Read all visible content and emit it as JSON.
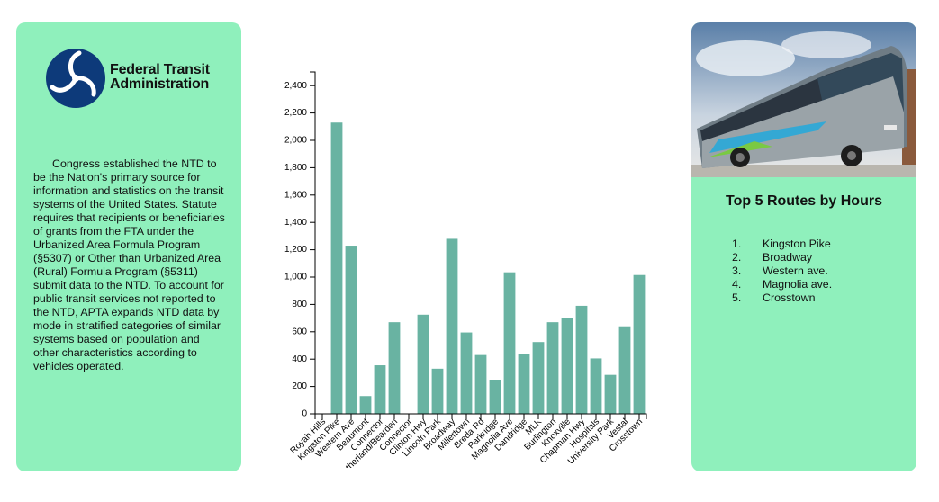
{
  "fta": {
    "logo_line1": "Federal Transit",
    "logo_line2": "Administration",
    "description": "Congress established the NTD to be the Nation's primary source for information and statistics on the transit systems of the United States. Statute requires that recipients or beneficiaries of grants from the FTA under the Urbanized Area Formula Program (§5307) or Other than Urbanized Area (Rural) Formula Program (§5311) submit data to the NTD. To account for public transit services not reported to the NTD, APTA expands NTD data by mode in stratified categories of similar systems based on population and other characteristics according to vehicles operated."
  },
  "routes": {
    "title": "Top 5 Routes by Hours",
    "items": [
      {
        "num": "1.",
        "name": "Kingston Pike"
      },
      {
        "num": "2.",
        "name": "Broadway"
      },
      {
        "num": "3.",
        "name": "Western ave."
      },
      {
        "num": "4.",
        "name": "Magnolia ave."
      },
      {
        "num": "5.",
        "name": "Crosstown"
      }
    ]
  },
  "colors": {
    "panel": "#8ff0bc",
    "bar": "#69b3a2"
  },
  "chart_data": {
    "type": "bar",
    "categories": [
      "Royah Hills",
      "Kingston Pike",
      "Western Ave",
      "Beaumont",
      "Connector",
      "Sutherland/Bearden",
      "Connector",
      "Clinton Hwy",
      "Lincoln Park",
      "Broadway",
      "Millertown",
      "Breda Rd",
      "Parkridge",
      "Magnolia Ave",
      "Dandridge",
      "MLK",
      "Burlington",
      "Knoxville",
      "Chapman Hwy",
      "Hospitals",
      "University Park",
      "Vestal",
      "Crosstown"
    ],
    "values": [
      0,
      2130,
      1230,
      130,
      355,
      670,
      0,
      725,
      330,
      1280,
      595,
      430,
      250,
      1035,
      435,
      525,
      670,
      700,
      790,
      405,
      285,
      640,
      1015
    ],
    "ylim": [
      0,
      2500
    ],
    "yticks": [
      0,
      200,
      400,
      600,
      800,
      1000,
      1200,
      1400,
      1600,
      1800,
      2000,
      2200,
      2400
    ],
    "ytick_labels": [
      "0",
      "200",
      "400",
      "600",
      "800",
      "1,000",
      "1,200",
      "1,400",
      "1,600",
      "1,800",
      "2,000",
      "2,200",
      "2,400"
    ],
    "title": "",
    "xlabel": "",
    "ylabel": "",
    "grid": false,
    "legend": "none"
  }
}
